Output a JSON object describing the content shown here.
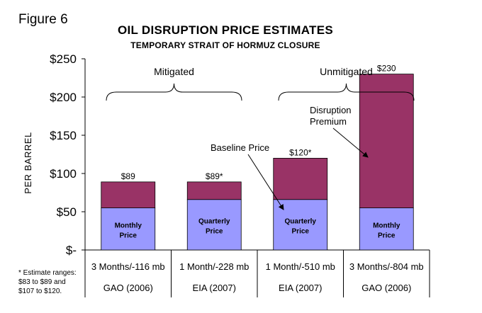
{
  "figure_label": "Figure 6",
  "footnote": [
    "* Estimate ranges:",
    "$83 to $89 and",
    "$107 to $120."
  ],
  "chart_data": {
    "type": "bar",
    "stacked": true,
    "title": "OIL DISRUPTION PRICE ESTIMATES",
    "subtitle": "TEMPORARY STRAIT OF HORMUZ CLOSURE",
    "ylabel": "PER BARREL",
    "ylim": [
      0,
      250
    ],
    "yticks": [
      0,
      50,
      100,
      150,
      200,
      250
    ],
    "ytick_labels": [
      "$-",
      "$50",
      "$100",
      "$150",
      "$200",
      "$250"
    ],
    "categories": [
      {
        "line1": "3 Months/-116 mb",
        "line2": "GAO (2006)"
      },
      {
        "line1": "1 Month/-228 mb",
        "line2": "EIA (2007)"
      },
      {
        "line1": "1 Month/-510 mb",
        "line2": "EIA (2007)"
      },
      {
        "line1": "3 Months/-804 mb",
        "line2": "GAO (2006)"
      }
    ],
    "series": [
      {
        "name": "Baseline Price",
        "color": "#9999ff",
        "values": [
          55,
          66,
          66,
          55
        ]
      },
      {
        "name": "Disruption Premium",
        "color": "#993366",
        "values": [
          34,
          23,
          54,
          175
        ]
      }
    ],
    "totals": [
      89,
      89,
      120,
      230
    ],
    "total_labels": [
      "$89",
      "$89*",
      "$120*",
      "$230"
    ],
    "inside_labels": [
      [
        "Monthly",
        "Price"
      ],
      [
        "Quarterly",
        "Price"
      ],
      [
        "Quarterly",
        "Price"
      ],
      [
        "Monthly",
        "Price"
      ]
    ],
    "groups": [
      {
        "label": "Mitigated",
        "from": 0,
        "to": 1
      },
      {
        "label": "Unmitigated",
        "from": 2,
        "to": 3
      }
    ],
    "annotations": [
      {
        "lines": [
          "Baseline Price"
        ],
        "points_to": "bar-3-baseline"
      },
      {
        "lines": [
          "Disruption",
          "Premium"
        ],
        "points_to": "bar-4-premium"
      }
    ],
    "grid": false
  }
}
